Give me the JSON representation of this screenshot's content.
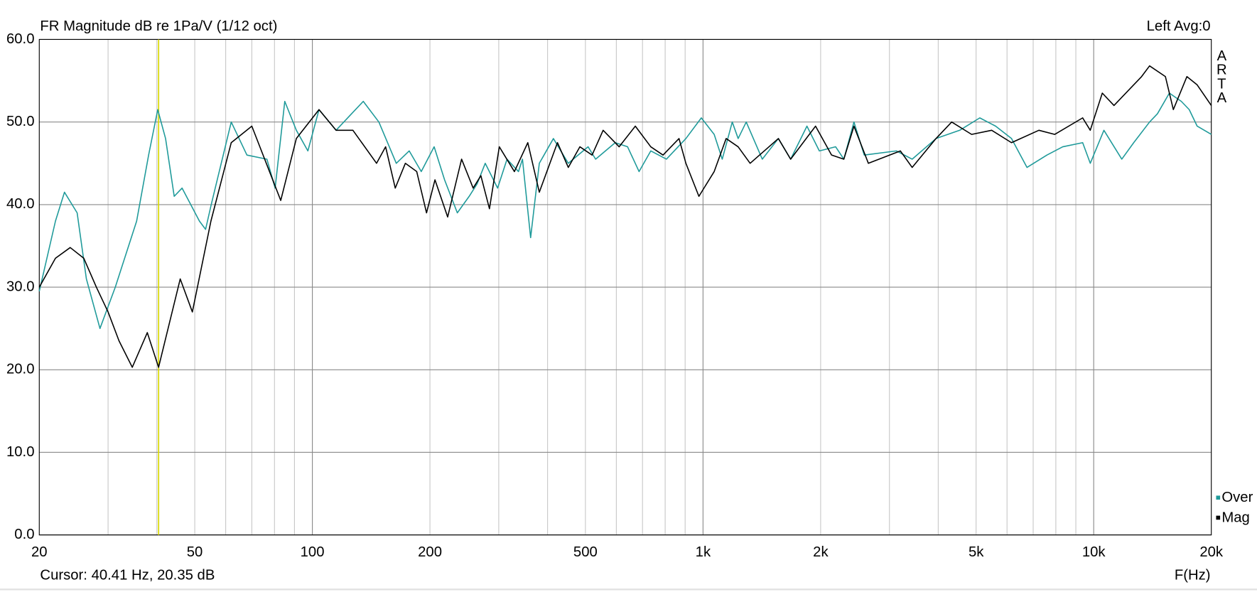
{
  "chart_data": {
    "type": "line",
    "title": "FR Magnitude dB re 1Pa/V (1/12 oct)",
    "channel_label": "Left  Avg:0",
    "watermark": "ARTA",
    "xlabel": "F(Hz)",
    "cursor": {
      "x": 40.41,
      "label": "Cursor: 40.41 Hz, 20.35 dB",
      "color": "#d8d800"
    },
    "xscale": "log",
    "xlim": [
      20,
      20000
    ],
    "ylim": [
      0,
      60
    ],
    "xticks": [
      20,
      50,
      100,
      200,
      500,
      {
        "value": 1000,
        "label": "1k"
      },
      {
        "value": 2000,
        "label": "2k"
      },
      {
        "value": 5000,
        "label": "5k"
      },
      {
        "value": 10000,
        "label": "10k"
      },
      {
        "value": 20000,
        "label": "20k"
      }
    ],
    "xgrid": [
      30,
      40,
      50,
      60,
      70,
      80,
      90,
      100,
      200,
      300,
      400,
      500,
      600,
      700,
      800,
      900,
      1000,
      2000,
      3000,
      4000,
      5000,
      6000,
      7000,
      8000,
      9000,
      10000
    ],
    "yticks": [
      {
        "value": 0,
        "label": "0.0"
      },
      {
        "value": 10,
        "label": "10.0"
      },
      {
        "value": 20,
        "label": "20.0"
      },
      {
        "value": 30,
        "label": "30.0"
      },
      {
        "value": 40,
        "label": "40.0"
      },
      {
        "value": 50,
        "label": "50.0"
      },
      {
        "value": 60,
        "label": "60.0"
      }
    ],
    "grid": true,
    "legend": "lower right",
    "series": [
      {
        "name": "Over",
        "color": "#1f9a9a",
        "x": [
          20,
          22,
          23.2,
          25,
          26.4,
          28.6,
          31.3,
          35.5,
          38.1,
          40.2,
          42.1,
          44.3,
          46.4,
          51.4,
          53.3,
          55.1,
          62,
          68,
          76.5,
          80.3,
          85,
          91,
          97.4,
          104,
          115,
          126,
          135,
          148,
          164,
          177,
          190,
          205,
          218,
          235,
          252,
          264,
          277,
          298,
          315,
          337,
          345,
          362,
          381,
          414,
          452,
          508,
          531,
          596,
          641,
          686,
          735,
          806,
          904,
          990,
          1068,
          1120,
          1188,
          1230,
          1290,
          1418,
          1559,
          1676,
          1845,
          1985,
          2185,
          2293,
          2434,
          2586,
          3125,
          3430,
          3948,
          4540,
          5110,
          5610,
          6160,
          6750,
          7590,
          8330,
          9370,
          9800,
          10620,
          11800,
          12660,
          13900,
          14560,
          15620,
          16760,
          17560,
          18400,
          20000
        ],
        "values": [
          29.5,
          38,
          41.5,
          39,
          31,
          25,
          30,
          38,
          46,
          51.5,
          48,
          41,
          42,
          38,
          37,
          40,
          50,
          46,
          45.5,
          42,
          52.5,
          49,
          46.5,
          51.5,
          49,
          51,
          52.5,
          50,
          45,
          46.5,
          44,
          47,
          43,
          39,
          41,
          42.5,
          45,
          42,
          45.5,
          44,
          45.5,
          36,
          45,
          48,
          45,
          47,
          45.5,
          47.5,
          47,
          44,
          46.5,
          45.5,
          48,
          50.5,
          48.5,
          45.5,
          50,
          48,
          50,
          45.5,
          48,
          45.5,
          49.5,
          46.5,
          47,
          45.5,
          50,
          46,
          46.5,
          45.5,
          48,
          49,
          50.5,
          49.5,
          48,
          44.5,
          46,
          47,
          47.5,
          45,
          49,
          45.5,
          47.5,
          50,
          51,
          53.5,
          52.5,
          51.5,
          49.5,
          48.5
        ]
      },
      {
        "name": "Mag",
        "color": "#000000",
        "x": [
          20,
          22,
          24,
          26,
          28,
          30,
          32,
          34.6,
          37.8,
          40.4,
          45.9,
          49.3,
          55,
          62,
          70,
          83,
          91,
          104,
          115,
          127,
          146,
          154,
          163,
          173,
          185,
          196,
          206,
          222,
          241,
          258,
          270,
          284,
          301,
          329,
          356,
          381,
          424,
          452,
          484,
          520,
          555,
          610,
          671,
          735,
          790,
          868,
          904,
          976,
          1068,
          1146,
          1230,
          1320,
          1559,
          1676,
          1941,
          2133,
          2293,
          2434,
          2650,
          3200,
          3430,
          3948,
          4330,
          4870,
          5480,
          6160,
          7240,
          7950,
          9370,
          9800,
          10520,
          11270,
          13260,
          13900,
          15260,
          15990,
          17320,
          18400,
          20000
        ],
        "values": [
          30,
          33.5,
          34.8,
          33.5,
          30,
          27,
          23.5,
          20.3,
          24.5,
          20.3,
          31,
          27,
          38,
          47.5,
          49.5,
          40.5,
          48,
          51.5,
          49,
          49,
          45,
          47,
          42,
          45,
          44,
          39,
          43,
          38.5,
          45.5,
          42,
          43.5,
          39.5,
          47,
          44,
          47.5,
          41.5,
          47.5,
          44.5,
          47,
          46,
          49,
          47,
          49.5,
          47,
          46,
          48,
          45,
          41,
          44,
          48,
          47,
          45,
          48,
          45.5,
          49.5,
          46,
          45.5,
          49.5,
          45,
          46.5,
          44.5,
          48,
          50,
          48.5,
          49,
          47.5,
          49,
          48.5,
          50.5,
          49,
          53.5,
          52,
          55.5,
          56.8,
          55.5,
          51.5,
          55.5,
          54.5,
          52
        ]
      }
    ]
  }
}
